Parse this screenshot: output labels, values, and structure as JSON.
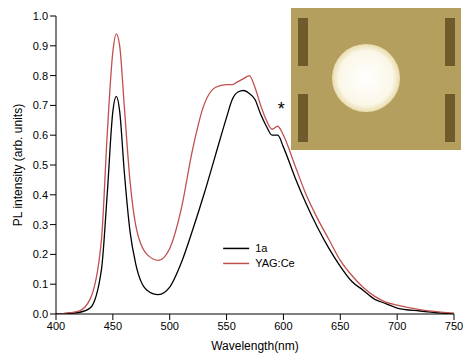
{
  "chart_data": {
    "type": "line",
    "x_label": "Wavelength(nm)",
    "y_label": "PL intensity (arb. units)",
    "x": [
      400,
      420,
      430,
      440,
      445,
      450,
      453,
      456,
      460,
      465,
      470,
      480,
      490,
      500,
      510,
      520,
      530,
      540,
      550,
      555,
      560,
      565,
      570,
      575,
      580,
      585,
      590,
      595,
      600,
      610,
      620,
      630,
      640,
      650,
      660,
      670,
      680,
      690,
      700,
      720,
      750
    ],
    "series": [
      {
        "name": "1a",
        "color": "#000000",
        "values": [
          0,
          0.005,
          0.02,
          0.15,
          0.4,
          0.68,
          0.73,
          0.68,
          0.48,
          0.28,
          0.17,
          0.08,
          0.065,
          0.09,
          0.17,
          0.28,
          0.4,
          0.53,
          0.66,
          0.72,
          0.745,
          0.75,
          0.74,
          0.72,
          0.67,
          0.63,
          0.6,
          0.6,
          0.56,
          0.46,
          0.37,
          0.29,
          0.22,
          0.16,
          0.11,
          0.08,
          0.05,
          0.035,
          0.02,
          0.01,
          0
        ]
      },
      {
        "name": "YAG:Ce",
        "color": "#c0504d",
        "values": [
          0,
          0.01,
          0.05,
          0.25,
          0.6,
          0.88,
          0.94,
          0.9,
          0.7,
          0.45,
          0.3,
          0.2,
          0.18,
          0.22,
          0.35,
          0.55,
          0.7,
          0.76,
          0.77,
          0.77,
          0.78,
          0.79,
          0.8,
          0.76,
          0.7,
          0.65,
          0.62,
          0.63,
          0.6,
          0.5,
          0.4,
          0.32,
          0.25,
          0.18,
          0.13,
          0.09,
          0.06,
          0.04,
          0.03,
          0.015,
          0.003
        ]
      }
    ],
    "xlim": [
      400,
      750
    ],
    "xticks": [
      400,
      450,
      500,
      550,
      600,
      650,
      700,
      750
    ],
    "ylim": [
      0,
      1
    ],
    "yticks": [
      {
        "value": 0,
        "label": "0.0"
      },
      0.1,
      0.2,
      0.3,
      0.4,
      0.5,
      0.6,
      0.7,
      0.8,
      0.9,
      {
        "value": 1,
        "label": "1.0"
      }
    ],
    "legend": "bottom",
    "annotations": [
      {
        "text": "*",
        "x": 598,
        "y": 0.69
      }
    ]
  }
}
